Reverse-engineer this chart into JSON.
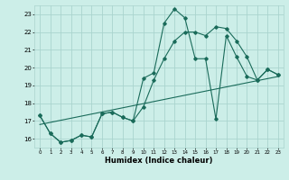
{
  "title": "",
  "xlabel": "Humidex (Indice chaleur)",
  "bg_color": "#cceee8",
  "grid_color": "#aad4ce",
  "line_color": "#1a6b5a",
  "xlim": [
    -0.5,
    23.5
  ],
  "ylim": [
    15.5,
    23.5
  ],
  "yticks": [
    16,
    17,
    18,
    19,
    20,
    21,
    22,
    23
  ],
  "xticks": [
    0,
    1,
    2,
    3,
    4,
    5,
    6,
    7,
    8,
    9,
    10,
    11,
    12,
    13,
    14,
    15,
    16,
    17,
    18,
    19,
    20,
    21,
    22,
    23
  ],
  "line1_x": [
    0,
    1,
    2,
    3,
    4,
    5,
    6,
    7,
    8,
    9,
    10,
    11,
    12,
    13,
    14,
    15,
    16,
    17,
    18,
    19,
    20,
    21,
    22,
    23
  ],
  "line1_y": [
    17.3,
    16.3,
    15.8,
    15.9,
    16.2,
    16.1,
    17.4,
    17.5,
    17.2,
    17.0,
    19.4,
    19.7,
    22.5,
    23.3,
    22.8,
    20.5,
    20.5,
    17.1,
    21.8,
    20.6,
    19.5,
    19.3,
    19.9,
    19.6
  ],
  "line2_x": [
    0,
    1,
    2,
    3,
    4,
    5,
    6,
    7,
    8,
    9,
    10,
    11,
    12,
    13,
    14,
    15,
    16,
    17,
    18,
    19,
    20,
    21,
    22,
    23
  ],
  "line2_y": [
    17.3,
    16.3,
    15.8,
    15.9,
    16.2,
    16.1,
    17.4,
    17.5,
    17.2,
    17.0,
    17.8,
    19.3,
    20.5,
    21.5,
    22.0,
    22.0,
    21.8,
    22.3,
    22.2,
    21.5,
    20.6,
    19.3,
    19.9,
    19.6
  ],
  "line3_x": [
    0,
    23
  ],
  "line3_y": [
    16.8,
    19.5
  ]
}
